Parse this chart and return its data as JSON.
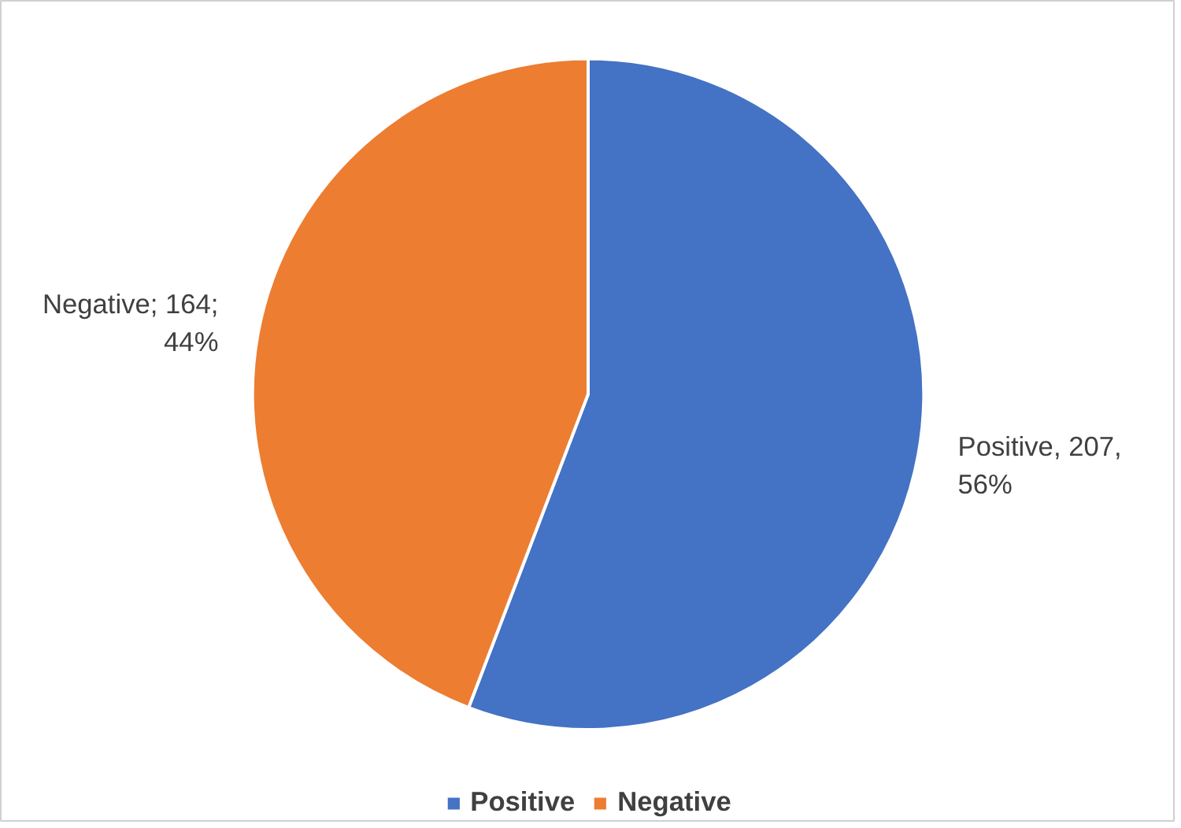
{
  "chart_data": {
    "type": "pie",
    "categories": [
      "Positive",
      "Negative"
    ],
    "values": [
      207,
      164
    ],
    "colors": [
      "#4472c4",
      "#ed7d31"
    ],
    "value_labels": [
      "Positive, 207, 56%",
      "Negative; 164; 44%"
    ],
    "legend": "bottom"
  }
}
